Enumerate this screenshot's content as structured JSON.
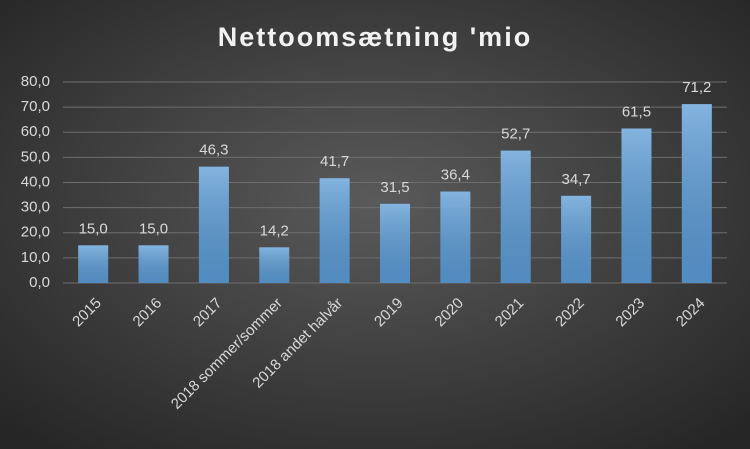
{
  "chart_data": {
    "type": "bar",
    "title": "Nettoomsætning 'mio",
    "categories": [
      "2015",
      "2016",
      "2017",
      "2018 sommer/sommer",
      "2018 andet halvår",
      "2019",
      "2020",
      "2021",
      "2022",
      "2023",
      "2024"
    ],
    "values": [
      15.0,
      15.0,
      46.3,
      14.2,
      41.7,
      31.5,
      36.4,
      52.7,
      34.7,
      61.5,
      71.2
    ],
    "value_labels": [
      "15,0",
      "15,0",
      "46,3",
      "14,2",
      "41,7",
      "31,5",
      "36,4",
      "52,7",
      "34,7",
      "61,5",
      "71,2"
    ],
    "color": "#5b9bd5",
    "ylim": [
      0,
      80
    ],
    "yticks": [
      {
        "value": 0,
        "label": "0,0"
      },
      {
        "value": 10,
        "label": "10,0"
      },
      {
        "value": 20,
        "label": "20,0"
      },
      {
        "value": 30,
        "label": "30,0"
      },
      {
        "value": 40,
        "label": "40,0"
      },
      {
        "value": 50,
        "label": "50,0"
      },
      {
        "value": 60,
        "label": "60,0"
      },
      {
        "value": 70,
        "label": "70,0"
      },
      {
        "value": 80,
        "label": "80,0"
      }
    ],
    "grid": true
  }
}
